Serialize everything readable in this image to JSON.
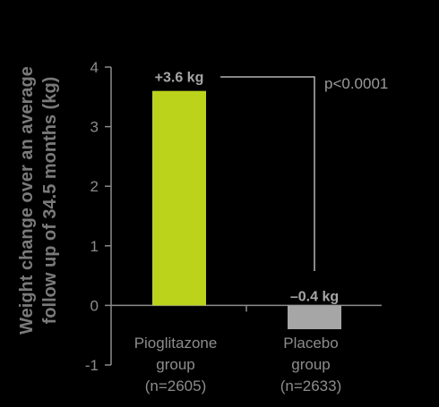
{
  "chart_data": {
    "type": "bar",
    "categories": [
      [
        "Pioglitazone",
        "group",
        "(n=2605)"
      ],
      [
        "Placebo",
        "group",
        "(n=2633)"
      ]
    ],
    "values": [
      3.6,
      -0.4
    ],
    "data_labels": [
      "+3.6 kg",
      "–0.4 kg"
    ],
    "bar_colors": [
      "#bcd31c",
      "#a6a6a6"
    ],
    "ylabel": [
      "Weight change over an average",
      "follow up of 34.5 months (kg)"
    ],
    "ylim": [
      -1,
      4
    ],
    "yticks": [
      "-1",
      "0",
      "1",
      "2",
      "3",
      "4"
    ],
    "annotation": "p<0.0001",
    "grid": false,
    "colors": {
      "background": "#000000",
      "axis": "#8c8c8c",
      "text": "#8c8c8c"
    }
  }
}
